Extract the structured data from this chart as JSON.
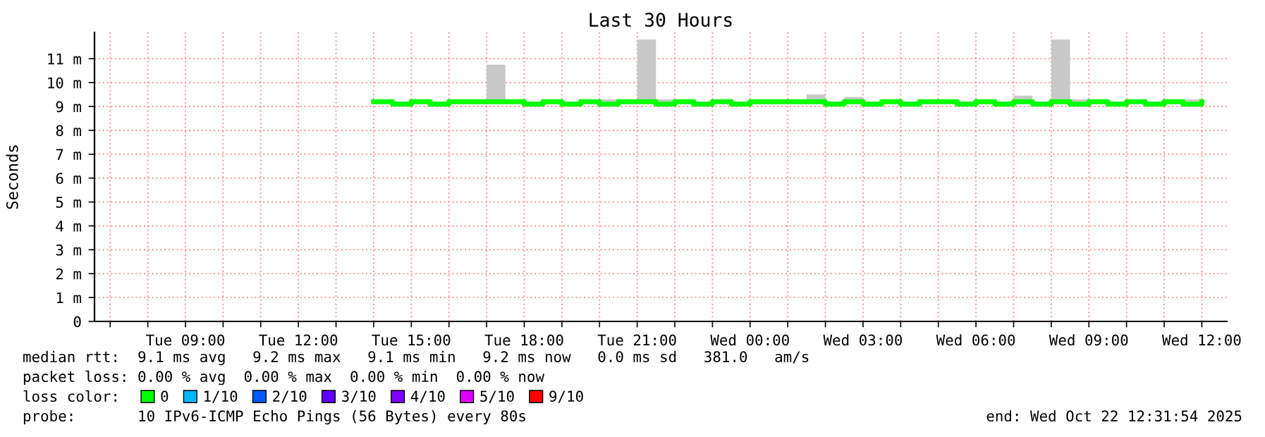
{
  "chart_data": {
    "type": "step",
    "title": "Last 30 Hours",
    "ylabel": "Seconds",
    "xlim": [
      "2025-10-21T06:35",
      "2025-10-22T12:40"
    ],
    "xticks": [
      {
        "value": "2025-10-21T07:00",
        "label": null
      },
      {
        "value": "2025-10-21T08:00",
        "label": null
      },
      {
        "value": "2025-10-21T09:00",
        "label": "Tue 09:00"
      },
      {
        "value": "2025-10-21T10:00",
        "label": null
      },
      {
        "value": "2025-10-21T11:00",
        "label": null
      },
      {
        "value": "2025-10-21T12:00",
        "label": "Tue 12:00"
      },
      {
        "value": "2025-10-21T13:00",
        "label": null
      },
      {
        "value": "2025-10-21T14:00",
        "label": null
      },
      {
        "value": "2025-10-21T15:00",
        "label": "Tue 15:00"
      },
      {
        "value": "2025-10-21T16:00",
        "label": null
      },
      {
        "value": "2025-10-21T17:00",
        "label": null
      },
      {
        "value": "2025-10-21T18:00",
        "label": "Tue 18:00"
      },
      {
        "value": "2025-10-21T19:00",
        "label": null
      },
      {
        "value": "2025-10-21T20:00",
        "label": null
      },
      {
        "value": "2025-10-21T21:00",
        "label": "Tue 21:00"
      },
      {
        "value": "2025-10-21T22:00",
        "label": null
      },
      {
        "value": "2025-10-21T23:00",
        "label": null
      },
      {
        "value": "2025-10-22T00:00",
        "label": "Wed 00:00"
      },
      {
        "value": "2025-10-22T01:00",
        "label": null
      },
      {
        "value": "2025-10-22T02:00",
        "label": null
      },
      {
        "value": "2025-10-22T03:00",
        "label": "Wed 03:00"
      },
      {
        "value": "2025-10-22T04:00",
        "label": null
      },
      {
        "value": "2025-10-22T05:00",
        "label": null
      },
      {
        "value": "2025-10-22T06:00",
        "label": "Wed 06:00"
      },
      {
        "value": "2025-10-22T07:00",
        "label": null
      },
      {
        "value": "2025-10-22T08:00",
        "label": null
      },
      {
        "value": "2025-10-22T09:00",
        "label": "Wed 09:00"
      },
      {
        "value": "2025-10-22T10:00",
        "label": null
      },
      {
        "value": "2025-10-22T11:00",
        "label": null
      },
      {
        "value": "2025-10-22T12:00",
        "label": "Wed 12:00"
      }
    ],
    "ylim": [
      0,
      12.1
    ],
    "yticks": [
      0,
      {
        "value": 1,
        "label": "1 m"
      },
      {
        "value": 2,
        "label": "2 m"
      },
      {
        "value": 3,
        "label": "3 m"
      },
      {
        "value": 4,
        "label": "4 m"
      },
      {
        "value": 5,
        "label": "5 m"
      },
      {
        "value": 6,
        "label": "6 m"
      },
      {
        "value": 7,
        "label": "7 m"
      },
      {
        "value": 8,
        "label": "8 m"
      },
      {
        "value": 9,
        "label": "9 m"
      },
      {
        "value": 10,
        "label": "10 m"
      },
      {
        "value": 11,
        "label": "11 m"
      }
    ],
    "x": [
      "2025-10-21T14:00",
      "2025-10-21T14:30",
      "2025-10-21T15:00",
      "2025-10-21T15:30",
      "2025-10-21T16:00",
      "2025-10-21T16:30",
      "2025-10-21T17:00",
      "2025-10-21T17:30",
      "2025-10-21T18:00",
      "2025-10-21T18:30",
      "2025-10-21T19:00",
      "2025-10-21T19:30",
      "2025-10-21T20:00",
      "2025-10-21T20:30",
      "2025-10-21T21:00",
      "2025-10-21T21:30",
      "2025-10-21T22:00",
      "2025-10-21T22:30",
      "2025-10-21T23:00",
      "2025-10-21T23:30",
      "2025-10-22T00:00",
      "2025-10-22T00:30",
      "2025-10-22T01:00",
      "2025-10-22T01:30",
      "2025-10-22T02:00",
      "2025-10-22T02:30",
      "2025-10-22T03:00",
      "2025-10-22T03:30",
      "2025-10-22T04:00",
      "2025-10-22T04:30",
      "2025-10-22T05:00",
      "2025-10-22T05:30",
      "2025-10-22T06:00",
      "2025-10-22T06:30",
      "2025-10-22T07:00",
      "2025-10-22T07:30",
      "2025-10-22T08:00",
      "2025-10-22T08:30",
      "2025-10-22T09:00",
      "2025-10-22T09:30",
      "2025-10-22T10:00",
      "2025-10-22T10:30",
      "2025-10-22T11:00",
      "2025-10-22T11:30",
      "2025-10-22T12:00"
    ],
    "series": [
      {
        "name": "0",
        "color": "#00ff00",
        "values": [
          9.2,
          9.1,
          9.2,
          9.1,
          9.2,
          9.2,
          9.2,
          9.2,
          9.1,
          9.2,
          9.1,
          9.2,
          9.1,
          9.2,
          9.2,
          9.1,
          9.2,
          9.1,
          9.2,
          9.1,
          9.2,
          9.2,
          9.2,
          9.2,
          9.1,
          9.2,
          9.1,
          9.2,
          9.1,
          9.2,
          9.2,
          9.1,
          9.2,
          9.1,
          9.2,
          9.1,
          9.2,
          9.1,
          9.2,
          9.1,
          9.2,
          9.1,
          9.2,
          9.1,
          9.2
        ],
        "lower": [
          9.1,
          9.1,
          9.1,
          9.1,
          9.1,
          9.1,
          9.1,
          9.1,
          9.1,
          9.1,
          9.1,
          9.1,
          9.1,
          9.1,
          9.1,
          9.1,
          9.1,
          9.1,
          9.1,
          9.1,
          9.1,
          9.1,
          9.1,
          9.1,
          9.1,
          9.1,
          9.1,
          9.1,
          9.1,
          9.1,
          9.1,
          9.1,
          9.1,
          9.1,
          9.1,
          9.1,
          9.1,
          9.1,
          9.1,
          9.1,
          9.1,
          9.1,
          9.1,
          9.1,
          9.1
        ],
        "upper": [
          9.2,
          9.2,
          9.2,
          9.2,
          9.2,
          9.2,
          10.75,
          9.2,
          9.2,
          9.3,
          9.2,
          9.2,
          9.3,
          9.2,
          11.8,
          9.3,
          9.2,
          9.2,
          9.2,
          9.2,
          9.2,
          9.2,
          9.2,
          9.5,
          9.2,
          9.4,
          9.2,
          9.2,
          9.2,
          9.3,
          9.3,
          9.2,
          9.2,
          9.2,
          9.45,
          9.2,
          11.8,
          9.3,
          9.3,
          9.2,
          9.2,
          9.2,
          9.3,
          9.3,
          9.2
        ]
      },
      {
        "name": "1/10",
        "color": "#00b8ff",
        "values": [
          null,
          null,
          null,
          null,
          null,
          null,
          null,
          null,
          null,
          null,
          null,
          null,
          null,
          null,
          null,
          null,
          null,
          null,
          null,
          null,
          null,
          null,
          null,
          null,
          null,
          null,
          null,
          null,
          null,
          null,
          null,
          null,
          null,
          null,
          null,
          null,
          null,
          null,
          null,
          null,
          null,
          null,
          null,
          null,
          null
        ]
      },
      {
        "name": "2/10",
        "color": "#0059ff",
        "values": [
          null,
          null,
          null,
          null,
          null,
          null,
          null,
          null,
          null,
          null,
          null,
          null,
          null,
          null,
          null,
          null,
          null,
          null,
          null,
          null,
          null,
          null,
          null,
          null,
          null,
          null,
          null,
          null,
          null,
          null,
          null,
          null,
          null,
          null,
          null,
          null,
          null,
          null,
          null,
          null,
          null,
          null,
          null,
          null,
          null
        ]
      },
      {
        "name": "3/10",
        "color": "#5e00ff",
        "values": [
          null,
          null,
          null,
          null,
          null,
          null,
          null,
          null,
          null,
          null,
          null,
          null,
          null,
          null,
          null,
          null,
          null,
          null,
          null,
          null,
          null,
          null,
          null,
          null,
          null,
          null,
          null,
          null,
          null,
          null,
          null,
          null,
          null,
          null,
          null,
          null,
          null,
          null,
          null,
          null,
          null,
          null,
          null,
          null,
          null
        ]
      },
      {
        "name": "4/10",
        "color": "#7e00ff",
        "values": [
          null,
          null,
          null,
          null,
          null,
          null,
          null,
          null,
          null,
          null,
          null,
          null,
          null,
          null,
          null,
          null,
          null,
          null,
          null,
          null,
          null,
          null,
          null,
          null,
          null,
          null,
          null,
          null,
          null,
          null,
          null,
          null,
          null,
          null,
          null,
          null,
          null,
          null,
          null,
          null,
          null,
          null,
          null,
          null,
          null
        ]
      },
      {
        "name": "5/10",
        "color": "#dd00ff",
        "values": [
          null,
          null,
          null,
          null,
          null,
          null,
          null,
          null,
          null,
          null,
          null,
          null,
          null,
          null,
          null,
          null,
          null,
          null,
          null,
          null,
          null,
          null,
          null,
          null,
          null,
          null,
          null,
          null,
          null,
          null,
          null,
          null,
          null,
          null,
          null,
          null,
          null,
          null,
          null,
          null,
          null,
          null,
          null,
          null,
          null
        ]
      },
      {
        "name": "9/10",
        "color": "#ff0000",
        "values": [
          null,
          null,
          null,
          null,
          null,
          null,
          null,
          null,
          null,
          null,
          null,
          null,
          null,
          null,
          null,
          null,
          null,
          null,
          null,
          null,
          null,
          null,
          null,
          null,
          null,
          null,
          null,
          null,
          null,
          null,
          null,
          null,
          null,
          null,
          null,
          null,
          null,
          null,
          null,
          null,
          null,
          null,
          null,
          null,
          null
        ]
      }
    ],
    "grid": true,
    "legend": "bottom",
    "annotations": [
      "median rtt:  9.1 ms avg   9.2 ms max   9.1 ms min   9.2 ms now   0.0 ms sd   381.0   am/s",
      "packet loss: 0.00 % avg  0.00 % max  0.00 % min  0.00 % now",
      "loss color:",
      "probe:       10 IPv6-ICMP Echo Pings (56 Bytes) every 80s",
      "end: Wed Oct 22 12:31:54 2025"
    ]
  }
}
